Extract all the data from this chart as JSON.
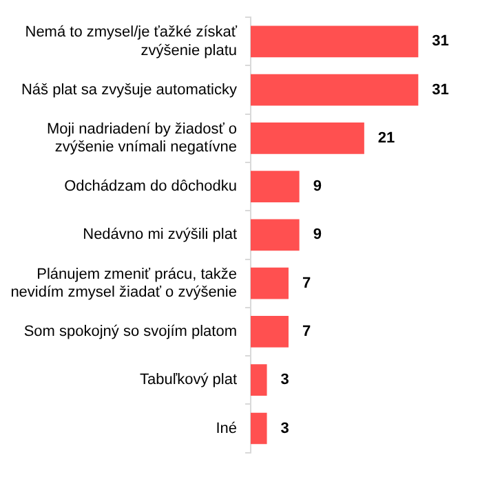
{
  "chart_data": {
    "type": "bar",
    "orientation": "horizontal",
    "categories": [
      "Nemá to zmysel/je ťažké získať zvýšenie platu",
      "Náš plat sa zvyšuje automaticky",
      "Moji nadriadení by žiadosť o zvýšenie vnímali negatívne",
      "Odchádzam do dôchodku",
      "Nedávno mi zvýšili plat",
      "Plánujem zmeniť prácu, takže nevidím zmysel žiadať o zvýšenie",
      "Som spokojný so svojím platom",
      "Tabuľkový plat",
      "Iné"
    ],
    "values": [
      31,
      31,
      21,
      9,
      9,
      7,
      7,
      3,
      3
    ],
    "color": "#ff5050",
    "data_labels": true,
    "grid": false,
    "legend": false
  }
}
